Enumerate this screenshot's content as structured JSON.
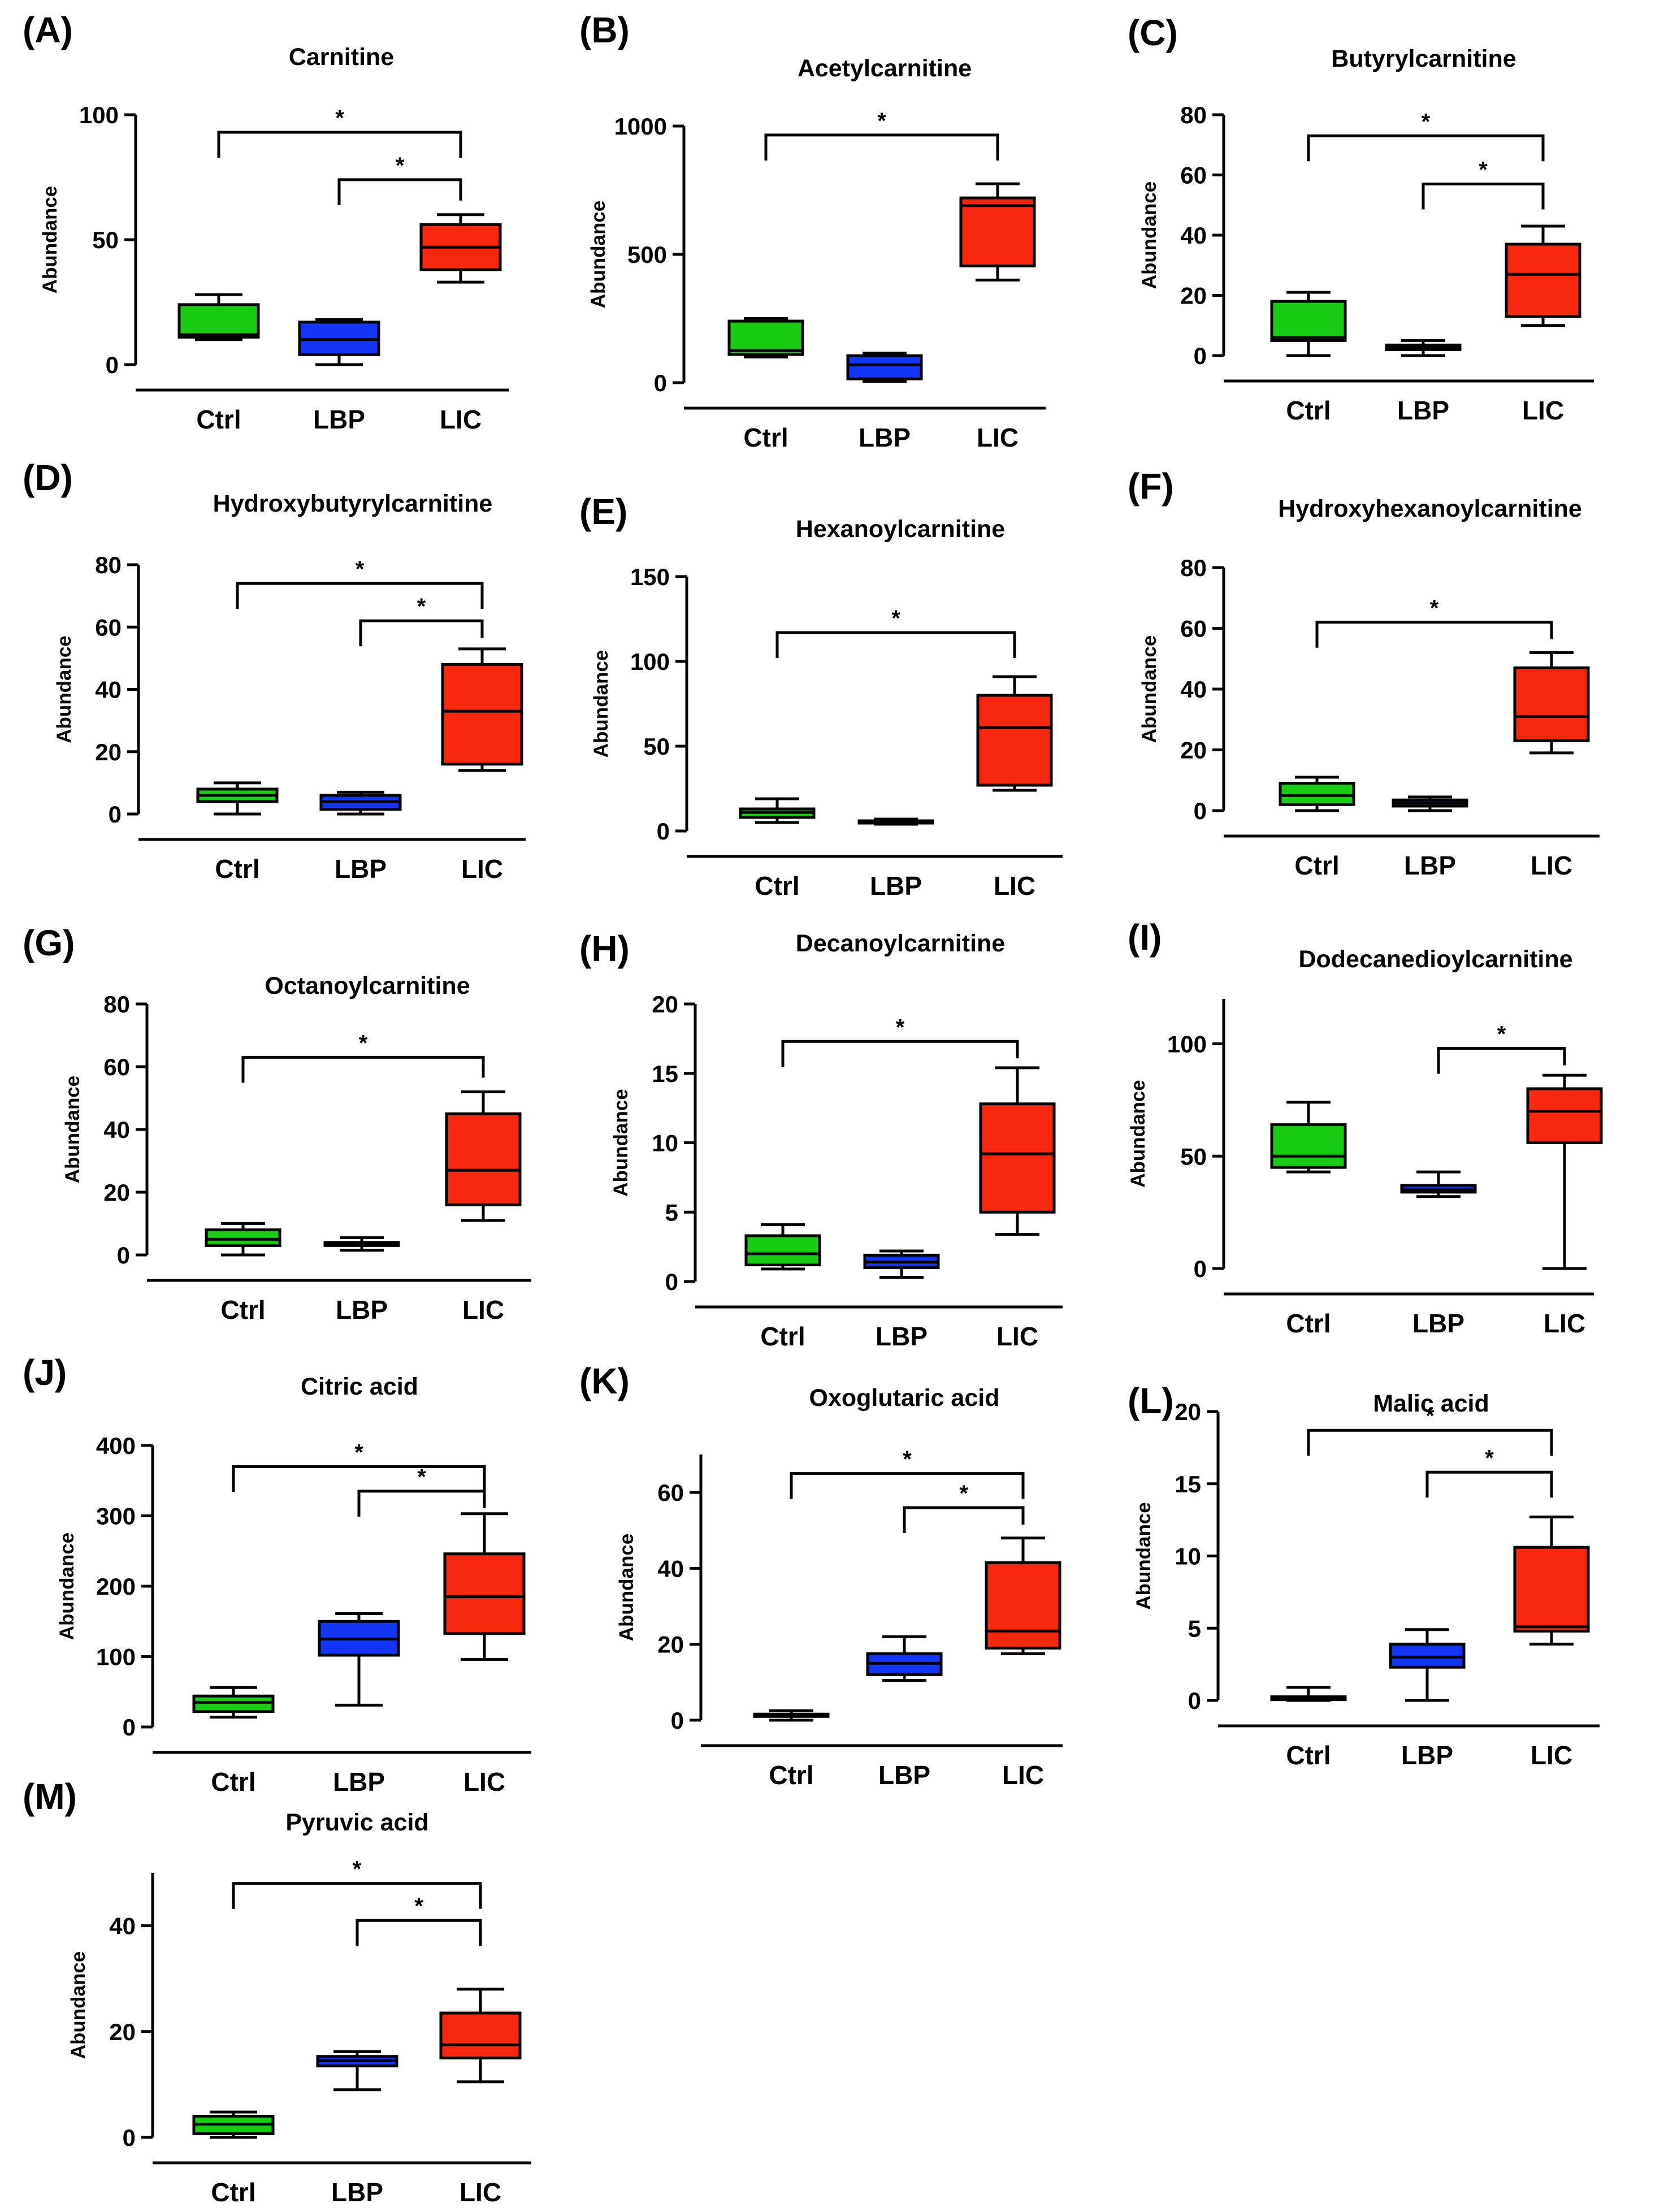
{
  "chart_data": [
    {
      "id": "A",
      "type": "box",
      "panel_label": "(A)",
      "title": "Carnitine",
      "ylabel": "Abundance",
      "categories": [
        "Ctrl",
        "LBP",
        "LIC"
      ],
      "ylim": [
        0,
        100
      ],
      "yticks": [
        0,
        50,
        100
      ],
      "boxes": [
        {
          "min": 10,
          "q1": 11,
          "median": 12,
          "q3": 24,
          "max": 28
        },
        {
          "min": 0,
          "q1": 4,
          "median": 10,
          "q3": 17,
          "max": 18
        },
        {
          "min": 33,
          "q1": 38,
          "median": 47,
          "q3": 56,
          "max": 60
        }
      ],
      "comparisons": [
        {
          "from": 0,
          "to": 2,
          "y": 93,
          "label": "*"
        },
        {
          "from": 1,
          "to": 2,
          "y": 74,
          "label": "*"
        }
      ]
    },
    {
      "id": "B",
      "type": "box",
      "panel_label": "(B)",
      "title": "Acetylcarnitine",
      "ylabel": "Abundance",
      "categories": [
        "Ctrl",
        "LBP",
        "LIC"
      ],
      "ylim": [
        0,
        1000
      ],
      "yticks": [
        0,
        500,
        1000
      ],
      "boxes": [
        {
          "min": 100,
          "q1": 110,
          "median": 125,
          "q3": 240,
          "max": 250
        },
        {
          "min": 5,
          "q1": 15,
          "median": 70,
          "q3": 105,
          "max": 115
        },
        {
          "min": 400,
          "q1": 455,
          "median": 690,
          "q3": 720,
          "max": 775
        }
      ],
      "comparisons": [
        {
          "from": 0,
          "to": 2,
          "y": 965,
          "label": "*"
        }
      ]
    },
    {
      "id": "C",
      "type": "box",
      "panel_label": "(C)",
      "title": "Butyrylcarnitine",
      "ylabel": "Abundance",
      "categories": [
        "Ctrl",
        "LBP",
        "LIC"
      ],
      "ylim": [
        0,
        80
      ],
      "yticks": [
        0,
        20,
        40,
        60,
        80
      ],
      "boxes": [
        {
          "min": 0,
          "q1": 5,
          "median": 6,
          "q3": 18,
          "max": 21
        },
        {
          "min": 0,
          "q1": 2,
          "median": 3,
          "q3": 3.5,
          "max": 5
        },
        {
          "min": 10,
          "q1": 13,
          "median": 27,
          "q3": 37,
          "max": 43
        }
      ],
      "comparisons": [
        {
          "from": 0,
          "to": 2,
          "y": 73,
          "label": "*"
        },
        {
          "from": 1,
          "to": 2,
          "y": 57,
          "label": "*"
        }
      ]
    },
    {
      "id": "D",
      "type": "box",
      "panel_label": "(D)",
      "title": "Hydroxybutyrylcarnitine",
      "ylabel": "Abundance",
      "categories": [
        "Ctrl",
        "LBP",
        "LIC"
      ],
      "ylim": [
        0,
        80
      ],
      "yticks": [
        0,
        20,
        40,
        60,
        80
      ],
      "boxes": [
        {
          "min": 0,
          "q1": 4,
          "median": 6,
          "q3": 8,
          "max": 10
        },
        {
          "min": 0,
          "q1": 1.5,
          "median": 4,
          "q3": 6,
          "max": 7
        },
        {
          "min": 14,
          "q1": 16,
          "median": 33,
          "q3": 48,
          "max": 53
        }
      ],
      "comparisons": [
        {
          "from": 0,
          "to": 2,
          "y": 74,
          "label": "*"
        },
        {
          "from": 1,
          "to": 2,
          "y": 62,
          "label": "*"
        }
      ]
    },
    {
      "id": "E",
      "type": "box",
      "panel_label": "(E)",
      "title": "Hexanoylcarnitine",
      "ylabel": "Abundance",
      "categories": [
        "Ctrl",
        "LBP",
        "LIC"
      ],
      "ylim": [
        0,
        150
      ],
      "yticks": [
        0,
        50,
        100,
        150
      ],
      "boxes": [
        {
          "min": 5,
          "q1": 8,
          "median": 11,
          "q3": 13,
          "max": 19
        },
        {
          "min": 4,
          "q1": 5,
          "median": 5.5,
          "q3": 6,
          "max": 7
        },
        {
          "min": 24,
          "q1": 27,
          "median": 61,
          "q3": 80,
          "max": 91
        }
      ],
      "comparisons": [
        {
          "from": 0,
          "to": 2,
          "y": 117,
          "label": "*"
        }
      ]
    },
    {
      "id": "F",
      "type": "box",
      "panel_label": "(F)",
      "title": "Hydroxyhexanoylcarnitine",
      "ylabel": "Abundance",
      "categories": [
        "Ctrl",
        "LBP",
        "LIC"
      ],
      "ylim": [
        0,
        80
      ],
      "yticks": [
        0,
        20,
        40,
        60,
        80
      ],
      "boxes": [
        {
          "min": 0,
          "q1": 2,
          "median": 5,
          "q3": 9,
          "max": 11
        },
        {
          "min": 0,
          "q1": 1.5,
          "median": 2.5,
          "q3": 3.5,
          "max": 4.5
        },
        {
          "min": 19,
          "q1": 23,
          "median": 31,
          "q3": 47,
          "max": 52
        }
      ],
      "comparisons": [
        {
          "from": 0,
          "to": 2,
          "y": 62,
          "label": "*"
        }
      ]
    },
    {
      "id": "G",
      "type": "box",
      "panel_label": "(G)",
      "title": "Octanoylcarnitine",
      "ylabel": "Abundance",
      "categories": [
        "Ctrl",
        "LBP",
        "LIC"
      ],
      "ylim": [
        0,
        80
      ],
      "yticks": [
        0,
        20,
        40,
        60,
        80
      ],
      "boxes": [
        {
          "min": 0,
          "q1": 3,
          "median": 5,
          "q3": 8,
          "max": 10
        },
        {
          "min": 1.5,
          "q1": 3,
          "median": 3.5,
          "q3": 4,
          "max": 5.5
        },
        {
          "min": 11,
          "q1": 16,
          "median": 27,
          "q3": 45,
          "max": 52
        }
      ],
      "comparisons": [
        {
          "from": 0,
          "to": 2,
          "y": 63,
          "label": "*"
        }
      ]
    },
    {
      "id": "H",
      "type": "box",
      "panel_label": "(H)",
      "title": "Decanoylcarnitine",
      "ylabel": "Abundance",
      "categories": [
        "Ctrl",
        "LBP",
        "LIC"
      ],
      "ylim": [
        0,
        20
      ],
      "yticks": [
        0,
        5,
        10,
        15,
        20
      ],
      "boxes": [
        {
          "min": 0.9,
          "q1": 1.2,
          "median": 2,
          "q3": 3.3,
          "max": 4.1
        },
        {
          "min": 0.3,
          "q1": 1,
          "median": 1.4,
          "q3": 1.9,
          "max": 2.2
        },
        {
          "min": 3.4,
          "q1": 5,
          "median": 9.2,
          "q3": 12.8,
          "max": 15.4
        }
      ],
      "comparisons": [
        {
          "from": 0,
          "to": 2,
          "y": 17.3,
          "label": "*"
        }
      ]
    },
    {
      "id": "I",
      "type": "box",
      "panel_label": "(I)",
      "title": "Dodecanedioylcarnitine",
      "ylabel": "Abundance",
      "categories": [
        "Ctrl",
        "LBP",
        "LIC"
      ],
      "ylim": [
        0,
        120
      ],
      "yticks": [
        0,
        50,
        100
      ],
      "boxes": [
        {
          "min": 43,
          "q1": 45,
          "median": 50,
          "q3": 64,
          "max": 74
        },
        {
          "min": 32,
          "q1": 34,
          "median": 35,
          "q3": 37,
          "max": 43
        },
        {
          "min": 0,
          "q1": 56,
          "median": 70,
          "q3": 80,
          "max": 86
        }
      ],
      "comparisons": [
        {
          "from": 1,
          "to": 2,
          "y": 98,
          "label": "*"
        }
      ]
    },
    {
      "id": "J",
      "type": "box",
      "panel_label": "(J)",
      "title": "Citric acid",
      "ylabel": "Abundance",
      "categories": [
        "Ctrl",
        "LBP",
        "LIC"
      ],
      "ylim": [
        0,
        400
      ],
      "yticks": [
        0,
        100,
        200,
        300,
        400
      ],
      "boxes": [
        {
          "min": 14,
          "q1": 22,
          "median": 35,
          "q3": 44,
          "max": 56
        },
        {
          "min": 31,
          "q1": 102,
          "median": 125,
          "q3": 150,
          "max": 161
        },
        {
          "min": 96,
          "q1": 133,
          "median": 185,
          "q3": 246,
          "max": 303
        }
      ],
      "comparisons": [
        {
          "from": 0,
          "to": 2,
          "y": 370,
          "label": "*"
        },
        {
          "from": 1,
          "to": 2,
          "y": 335,
          "label": "*"
        }
      ]
    },
    {
      "id": "K",
      "type": "box",
      "panel_label": "(K)",
      "title": "Oxoglutaric acid",
      "ylabel": "Abundance",
      "categories": [
        "Ctrl",
        "LBP",
        "LIC"
      ],
      "ylim": [
        0,
        70
      ],
      "yticks": [
        0,
        20,
        40,
        60
      ],
      "boxes": [
        {
          "min": 0,
          "q1": 1,
          "median": 1.3,
          "q3": 1.6,
          "max": 2.5
        },
        {
          "min": 10.5,
          "q1": 12,
          "median": 15,
          "q3": 17.5,
          "max": 22
        },
        {
          "min": 17.5,
          "q1": 19,
          "median": 23.5,
          "q3": 41.5,
          "max": 48
        }
      ],
      "comparisons": [
        {
          "from": 0,
          "to": 2,
          "y": 65,
          "label": "*"
        },
        {
          "from": 1,
          "to": 2,
          "y": 56,
          "label": "*"
        }
      ]
    },
    {
      "id": "L",
      "type": "box",
      "panel_label": "(L)",
      "title": "Malic acid",
      "ylabel": "Abundance",
      "categories": [
        "Ctrl",
        "LBP",
        "LIC"
      ],
      "ylim": [
        0,
        20
      ],
      "yticks": [
        0,
        5,
        10,
        15,
        20
      ],
      "boxes": [
        {
          "min": 0,
          "q1": 0.05,
          "median": 0.15,
          "q3": 0.25,
          "max": 0.9
        },
        {
          "min": 0,
          "q1": 2.3,
          "median": 3,
          "q3": 3.9,
          "max": 4.9
        },
        {
          "min": 3.9,
          "q1": 4.8,
          "median": 5.1,
          "q3": 10.6,
          "max": 12.7
        }
      ],
      "comparisons": [
        {
          "from": 0,
          "to": 2,
          "y": 18.7,
          "label": "*"
        },
        {
          "from": 1,
          "to": 2,
          "y": 15.8,
          "label": "*"
        }
      ]
    },
    {
      "id": "M",
      "type": "box",
      "panel_label": "(M)",
      "title": "Pyruvic acid",
      "ylabel": "Abundance",
      "categories": [
        "Ctrl",
        "LBP",
        "LIC"
      ],
      "ylim": [
        0,
        50
      ],
      "yticks": [
        0,
        20,
        40
      ],
      "boxes": [
        {
          "min": 0,
          "q1": 0.7,
          "median": 2.5,
          "q3": 4,
          "max": 4.8
        },
        {
          "min": 9,
          "q1": 13.5,
          "median": 14.5,
          "q3": 15.3,
          "max": 16.2
        },
        {
          "min": 10.5,
          "q1": 15,
          "median": 17.5,
          "q3": 23.5,
          "max": 28
        }
      ],
      "comparisons": [
        {
          "from": 0,
          "to": 2,
          "y": 48,
          "label": "*"
        },
        {
          "from": 1,
          "to": 2,
          "y": 41,
          "label": "*"
        }
      ]
    }
  ],
  "colors": {
    "Ctrl": "#17cc13",
    "LBP": "#1335f5",
    "LIC": "#f8280f"
  }
}
